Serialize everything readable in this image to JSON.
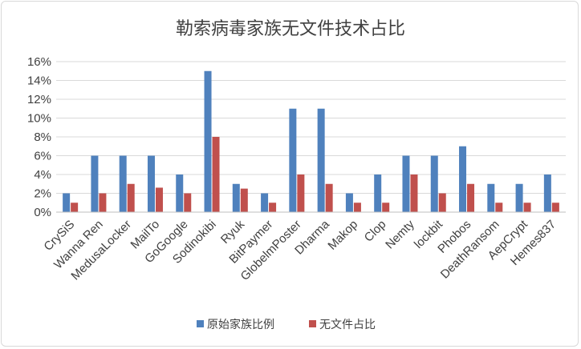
{
  "chart_data": {
    "type": "bar",
    "title": "勒索病毒家族无文件技术占比",
    "xlabel": "",
    "ylabel": "",
    "ylim": [
      0,
      16
    ],
    "y_unit": "%",
    "y_ticks": [
      "0%",
      "2%",
      "4%",
      "6%",
      "8%",
      "10%",
      "12%",
      "14%",
      "16%"
    ],
    "grid": true,
    "legend_position": "bottom",
    "categories": [
      "CrySiS",
      "Wanna Ren",
      "MedusaLocker",
      "MailTo",
      "GoGoogle",
      "Sodinokibi",
      "Ryuk",
      "BitPaymer",
      "GlobelmPoster",
      "Dharma",
      "Makop",
      "Clop",
      "Nemty",
      "lockbit",
      "Phobos",
      "DeathRansom",
      "AepCrypt",
      "Hemes837"
    ],
    "series": [
      {
        "name": "原始家族比例",
        "color": "#4f81bd",
        "values": [
          2,
          6,
          6,
          6,
          4,
          15,
          3,
          2,
          11,
          11,
          2,
          4,
          6,
          6,
          7,
          3,
          3,
          4
        ]
      },
      {
        "name": "无文件占比",
        "color": "#c0504d",
        "values": [
          1,
          2,
          3,
          2.6,
          2,
          8,
          2.5,
          1,
          4,
          3,
          1,
          1,
          4,
          2,
          3,
          1,
          1,
          1
        ]
      }
    ]
  }
}
